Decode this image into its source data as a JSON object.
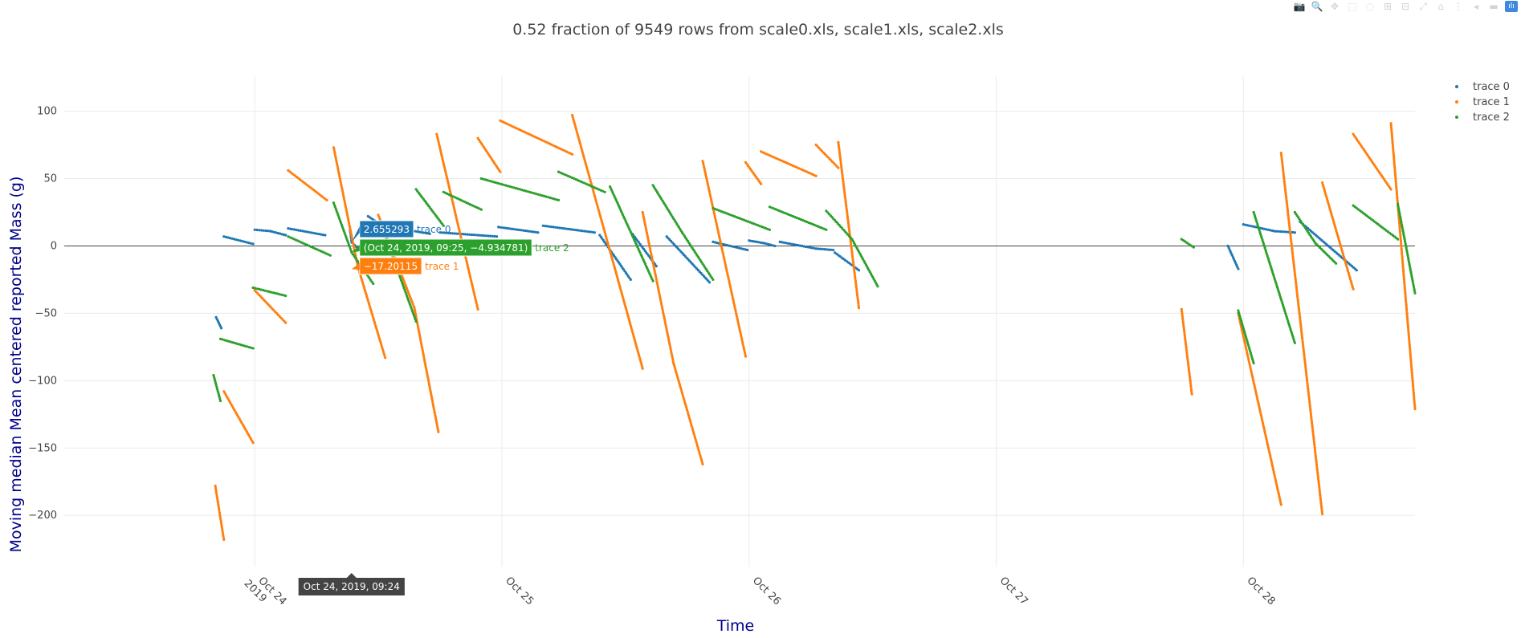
{
  "chart_data": {
    "type": "scatter",
    "title": "0.52 fraction of 9549 rows from scale0.xls, scale1.xls, scale2.xls",
    "xlabel": "Time",
    "ylabel": "Moving median Mean centered reported Mass (g)",
    "xlim": [
      "2019-10-23T05:30",
      "2019-10-28T16:40"
    ],
    "ylim": [
      -238,
      120
    ],
    "x_ticks": [
      {
        "value": "2019-10-24T00:00",
        "label": "Oct 24",
        "sub": "2019"
      },
      {
        "value": "2019-10-25T00:00",
        "label": "Oct 25",
        "sub": ""
      },
      {
        "value": "2019-10-26T00:00",
        "label": "Oct 26",
        "sub": ""
      },
      {
        "value": "2019-10-27T00:00",
        "label": "Oct 27",
        "sub": ""
      },
      {
        "value": "2019-10-28T00:00",
        "label": "Oct 28",
        "sub": ""
      }
    ],
    "y_ticks": [
      100,
      50,
      0,
      -50,
      -100,
      -150,
      -200
    ],
    "y_tick_labels": [
      "100",
      "50",
      "0",
      "−50",
      "−100",
      "−150",
      "−200"
    ],
    "grid": true,
    "zeroline": true,
    "legend_placement": "top-right",
    "series": [
      {
        "name": "trace 0",
        "color": "#1f77b4",
        "segments": [
          [
            [
              "2019-10-23T20:15",
              -53
            ],
            [
              "2019-10-23T20:45",
              -61
            ]
          ],
          [
            [
              "2019-10-23T21:00",
              7
            ],
            [
              "2019-10-23T23:50",
              1.5
            ]
          ],
          [
            [
              "2019-10-24T00:00",
              12
            ],
            [
              "2019-10-24T01:30",
              11
            ],
            [
              "2019-10-24T03:00",
              8
            ]
          ],
          [
            [
              "2019-10-24T03:15",
              13
            ],
            [
              "2019-10-24T06:50",
              8
            ]
          ],
          [
            [
              "2019-10-24T09:15",
              12
            ],
            [
              "2019-10-24T09:25",
              2.655293
            ],
            [
              "2019-10-24T10:30",
              -5
            ]
          ],
          [
            [
              "2019-10-24T11:00",
              22
            ],
            [
              "2019-10-24T12:00",
              17
            ]
          ],
          [
            [
              "2019-10-24T14:00",
              13
            ],
            [
              "2019-10-24T17:00",
              9
            ]
          ],
          [
            [
              "2019-10-24T18:00",
              10
            ],
            [
              "2019-10-24T23:30",
              7
            ]
          ],
          [
            [
              "2019-10-24T23:40",
              14
            ],
            [
              "2019-10-25T03:30",
              10
            ]
          ],
          [
            [
              "2019-10-25T04:00",
              15
            ],
            [
              "2019-10-25T09:00",
              10
            ]
          ],
          [
            [
              "2019-10-25T09:30",
              8
            ],
            [
              "2019-10-25T12:30",
              -25
            ]
          ],
          [
            [
              "2019-10-25T12:40",
              9
            ],
            [
              "2019-10-25T15:00",
              -15
            ]
          ],
          [
            [
              "2019-10-25T16:00",
              7
            ],
            [
              "2019-10-25T20:10",
              -27
            ]
          ],
          [
            [
              "2019-10-25T20:30",
              3
            ],
            [
              "2019-10-25T23:50",
              -3
            ]
          ],
          [
            [
              "2019-10-26T00:00",
              4
            ],
            [
              "2019-10-26T01:30",
              2
            ],
            [
              "2019-10-26T02:30",
              0
            ]
          ],
          [
            [
              "2019-10-26T03:00",
              3
            ],
            [
              "2019-10-26T06:30",
              -2
            ],
            [
              "2019-10-26T08:10",
              -3
            ]
          ],
          [
            [
              "2019-10-26T08:20",
              -5
            ],
            [
              "2019-10-26T10:40",
              -18
            ]
          ],
          [
            [
              "2019-10-27T22:30",
              0
            ],
            [
              "2019-10-27T23:30",
              -17
            ]
          ],
          [
            [
              "2019-10-28T00:00",
              16
            ],
            [
              "2019-10-28T03:00",
              11
            ],
            [
              "2019-10-28T05:00",
              10
            ]
          ],
          [
            [
              "2019-10-28T05:30",
              18
            ],
            [
              "2019-10-28T11:00",
              -18
            ]
          ]
        ]
      },
      {
        "name": "trace 1",
        "color": "#ff7f0e",
        "segments": [
          [
            [
              "2019-10-23T20:10",
              -178
            ],
            [
              "2019-10-23T21:00",
              -218
            ]
          ],
          [
            [
              "2019-10-23T21:00",
              -108
            ],
            [
              "2019-10-23T23:50",
              -146
            ]
          ],
          [
            [
              "2019-10-24T00:00",
              -33
            ],
            [
              "2019-10-24T03:00",
              -57
            ]
          ],
          [
            [
              "2019-10-24T03:15",
              56
            ],
            [
              "2019-10-24T07:00",
              34
            ]
          ],
          [
            [
              "2019-10-24T07:40",
              73
            ],
            [
              "2019-10-24T10:00",
              -15
            ],
            [
              "2019-10-24T12:40",
              -83
            ]
          ],
          [
            [
              "2019-10-24T12:00",
              23
            ],
            [
              "2019-10-24T15:30",
              -46
            ],
            [
              "2019-10-24T17:50",
              -138
            ]
          ],
          [
            [
              "2019-10-24T17:40",
              83
            ],
            [
              "2019-10-24T21:40",
              -47
            ]
          ],
          [
            [
              "2019-10-24T21:40",
              80
            ],
            [
              "2019-10-24T23:50",
              55
            ]
          ],
          [
            [
              "2019-10-24T23:50",
              93
            ],
            [
              "2019-10-25T06:50",
              68
            ]
          ],
          [
            [
              "2019-10-25T06:50",
              97
            ],
            [
              "2019-10-25T13:40",
              -91
            ]
          ],
          [
            [
              "2019-10-25T13:40",
              25
            ],
            [
              "2019-10-25T16:40",
              -87
            ],
            [
              "2019-10-25T19:30",
              -162
            ]
          ],
          [
            [
              "2019-10-25T19:30",
              63
            ],
            [
              "2019-10-25T23:40",
              -82
            ]
          ],
          [
            [
              "2019-10-25T23:40",
              62
            ],
            [
              "2019-10-26T01:10",
              46
            ]
          ],
          [
            [
              "2019-10-26T01:10",
              70
            ],
            [
              "2019-10-26T06:30",
              52
            ]
          ],
          [
            [
              "2019-10-26T06:30",
              75
            ],
            [
              "2019-10-26T08:40",
              58
            ]
          ],
          [
            [
              "2019-10-26T08:40",
              77
            ],
            [
              "2019-10-26T10:40",
              -46
            ]
          ],
          [
            [
              "2019-10-27T18:00",
              -47
            ],
            [
              "2019-10-27T19:00",
              -110
            ]
          ],
          [
            [
              "2019-10-27T23:30",
              -50
            ],
            [
              "2019-10-28T03:40",
              -192
            ]
          ],
          [
            [
              "2019-10-28T03:40",
              69
            ],
            [
              "2019-10-28T07:40",
              -199
            ]
          ],
          [
            [
              "2019-10-28T07:40",
              47
            ],
            [
              "2019-10-28T10:40",
              -32
            ]
          ],
          [
            [
              "2019-10-28T10:40",
              83
            ],
            [
              "2019-10-28T14:20",
              42
            ]
          ],
          [
            [
              "2019-10-28T14:20",
              91
            ],
            [
              "2019-10-28T16:40",
              -121
            ]
          ]
        ]
      },
      {
        "name": "trace 2",
        "color": "#2ca02c",
        "segments": [
          [
            [
              "2019-10-23T20:00",
              -96
            ],
            [
              "2019-10-23T20:40",
              -115
            ]
          ],
          [
            [
              "2019-10-23T20:40",
              -69
            ],
            [
              "2019-10-23T23:50",
              -76
            ]
          ],
          [
            [
              "2019-10-23T23:50",
              -31
            ],
            [
              "2019-10-24T03:00",
              -37
            ]
          ],
          [
            [
              "2019-10-24T03:15",
              7
            ],
            [
              "2019-10-24T07:20",
              -7
            ]
          ],
          [
            [
              "2019-10-24T07:40",
              32
            ],
            [
              "2019-10-24T09:25",
              -4.934781
            ],
            [
              "2019-10-24T11:30",
              -28
            ]
          ],
          [
            [
              "2019-10-24T12:30",
              11
            ],
            [
              "2019-10-24T15:40",
              -56
            ]
          ],
          [
            [
              "2019-10-24T15:40",
              42
            ],
            [
              "2019-10-24T18:20",
              15
            ]
          ],
          [
            [
              "2019-10-24T18:20",
              40
            ],
            [
              "2019-10-24T22:00",
              27
            ]
          ],
          [
            [
              "2019-10-24T22:00",
              50
            ],
            [
              "2019-10-25T05:30",
              34
            ]
          ],
          [
            [
              "2019-10-25T05:30",
              55
            ],
            [
              "2019-10-25T10:00",
              40
            ]
          ],
          [
            [
              "2019-10-25T10:30",
              44
            ],
            [
              "2019-10-25T14:40",
              -26
            ]
          ],
          [
            [
              "2019-10-25T14:40",
              45
            ],
            [
              "2019-10-25T17:30",
              10
            ],
            [
              "2019-10-25T20:30",
              -25
            ]
          ],
          [
            [
              "2019-10-25T20:30",
              28
            ],
            [
              "2019-10-26T02:00",
              12
            ]
          ],
          [
            [
              "2019-10-26T02:00",
              29
            ],
            [
              "2019-10-26T07:30",
              12
            ]
          ],
          [
            [
              "2019-10-26T07:30",
              26
            ],
            [
              "2019-10-26T10:00",
              5
            ],
            [
              "2019-10-26T12:30",
              -30
            ]
          ],
          [
            [
              "2019-10-27T18:00",
              5
            ],
            [
              "2019-10-27T19:10",
              -1
            ]
          ],
          [
            [
              "2019-10-27T23:30",
              -48
            ],
            [
              "2019-10-28T01:00",
              -87
            ]
          ],
          [
            [
              "2019-10-28T01:00",
              25
            ],
            [
              "2019-10-28T05:00",
              -72
            ]
          ],
          [
            [
              "2019-10-28T05:00",
              25
            ],
            [
              "2019-10-28T07:00",
              2
            ],
            [
              "2019-10-28T09:00",
              -13
            ]
          ],
          [
            [
              "2019-10-28T10:40",
              30
            ],
            [
              "2019-10-28T15:00",
              5
            ]
          ],
          [
            [
              "2019-10-28T15:00",
              31
            ],
            [
              "2019-10-28T16:40",
              -35
            ]
          ]
        ]
      }
    ],
    "hover": {
      "x_label": "Oct 24, 2019, 09:24",
      "points": [
        {
          "series": "trace 0",
          "value": "2.655293",
          "y": 2.655293
        },
        {
          "series": "trace 2",
          "value": "(Oct 24, 2019, 09:25, −4.934781)",
          "y": -4.934781
        },
        {
          "series": "trace 1",
          "value": "−17.20115",
          "y": -17.20115
        }
      ]
    }
  },
  "modebar": {
    "icons": [
      "camera-icon",
      "zoom-icon",
      "pan-icon",
      "box-select-icon",
      "lasso-icon",
      "zoom-in-icon",
      "zoom-out-icon",
      "autoscale-icon",
      "reset-axes-icon",
      "spike-lines-icon",
      "hover-closest-icon",
      "hover-compare-icon",
      "plotly-logo-icon"
    ],
    "glyphs": [
      "📷",
      "🔍",
      "✥",
      "⬚",
      "◌",
      "⊞",
      "⊟",
      "⤢",
      "⌂",
      "⋮",
      "◂",
      "▬",
      "ılı"
    ]
  }
}
